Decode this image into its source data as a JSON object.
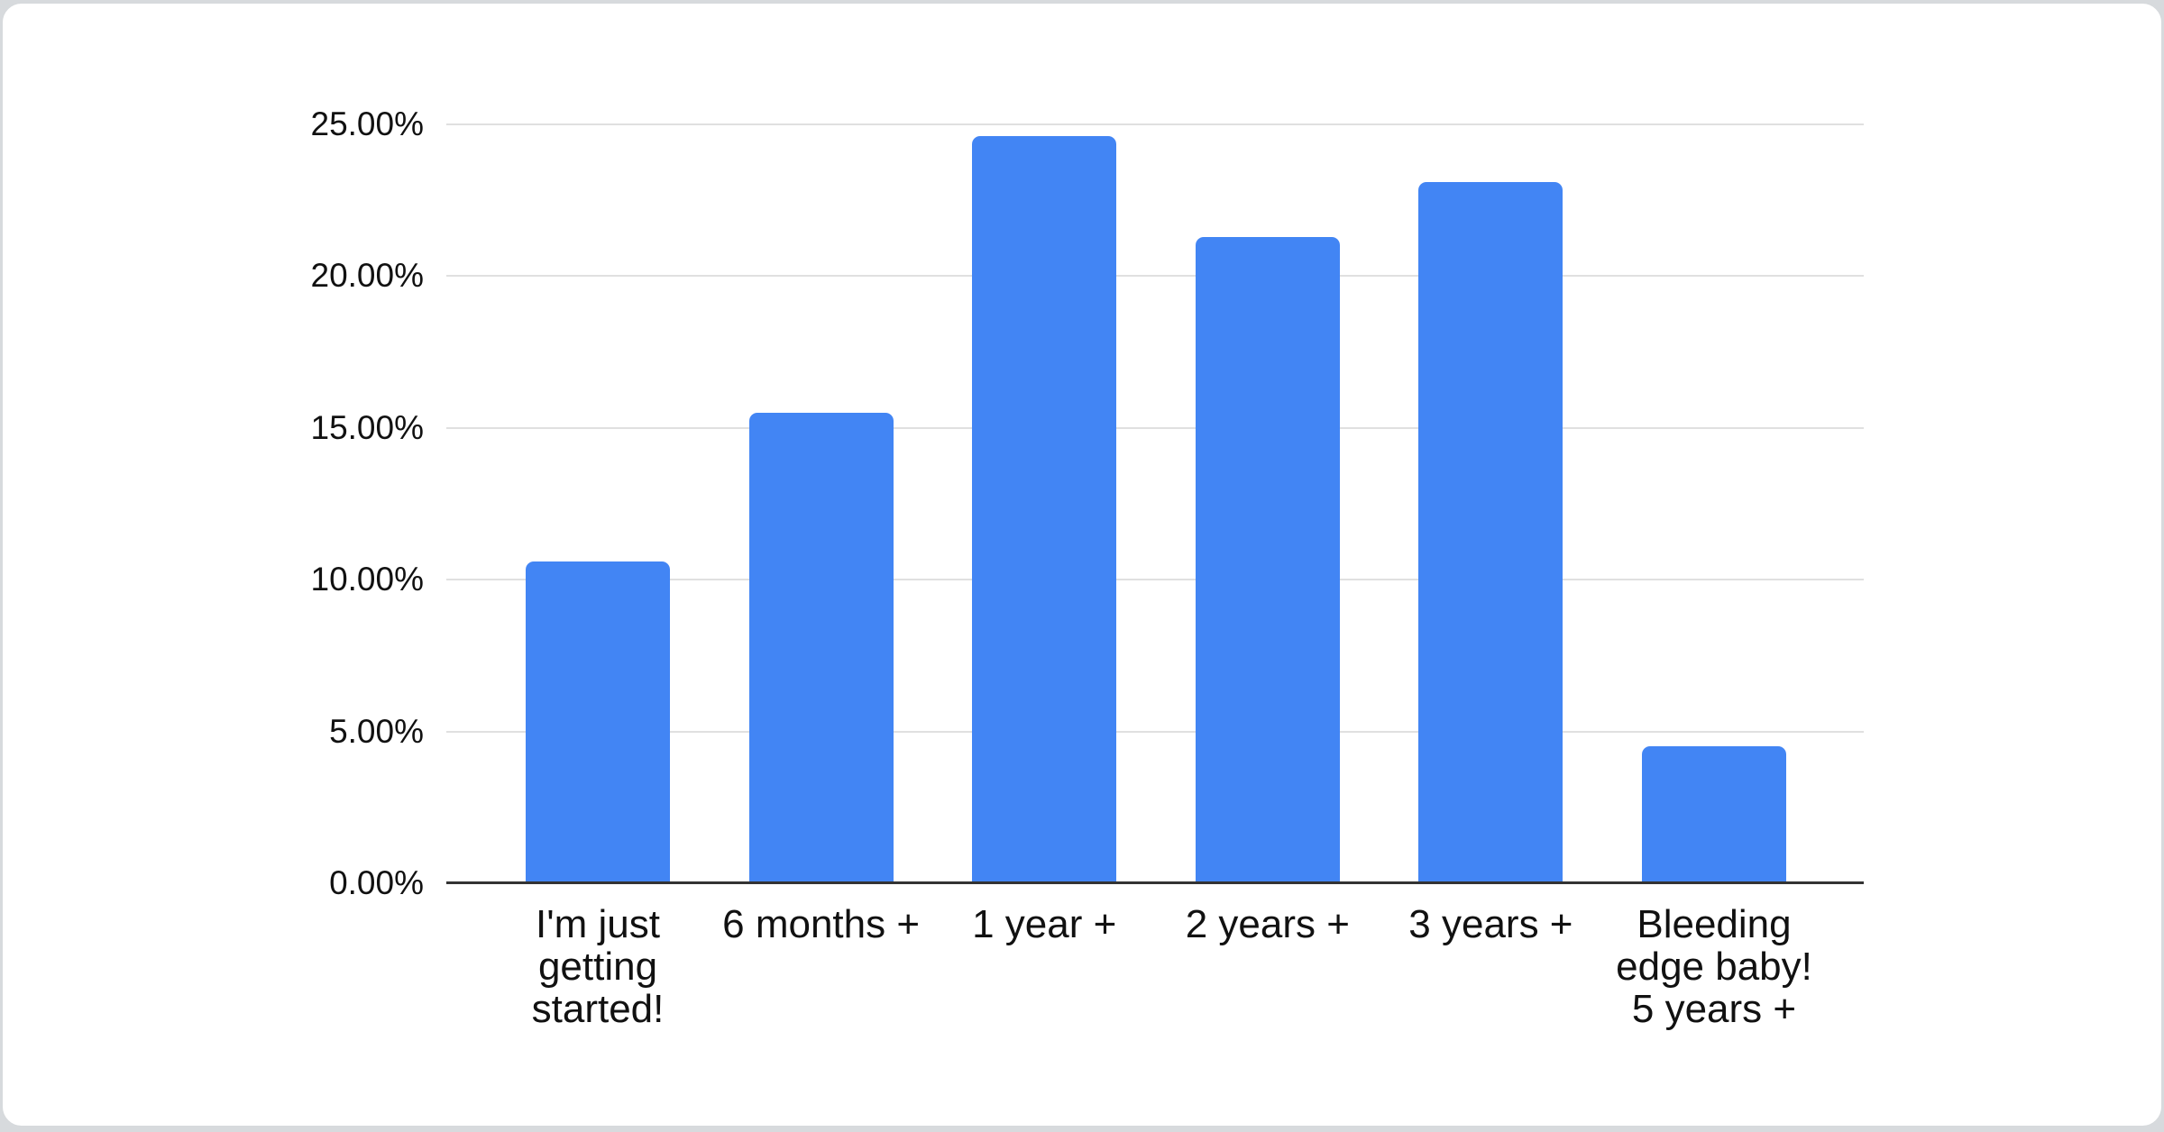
{
  "page": {
    "background_color": "#d7dadd",
    "card_background": "#ffffff",
    "card_border_color": "#d6d9dc"
  },
  "chart_data": {
    "type": "bar",
    "categories": [
      "I'm just getting started!",
      "6 months +",
      "1 year +",
      "2 years +",
      "3 years +",
      "Bleeding edge baby! 5 years +"
    ],
    "category_lines": [
      [
        "I'm just",
        "getting",
        "started!"
      ],
      [
        "6 months +"
      ],
      [
        "1 year +"
      ],
      [
        "2 years +"
      ],
      [
        "3 years +"
      ],
      [
        "Bleeding",
        "edge baby!",
        "5 years +"
      ]
    ],
    "values": [
      10.6,
      15.5,
      24.6,
      21.3,
      23.1,
      4.5
    ],
    "value_unit": "%",
    "y_ticks": [
      "0.00%",
      "5.00%",
      "10.00%",
      "15.00%",
      "20.00%",
      "25.00%"
    ],
    "y_tick_values": [
      0,
      5,
      10,
      15,
      20,
      25
    ],
    "ylim": [
      0,
      25
    ],
    "grid": true,
    "legend": "none",
    "bar_color": "#4285F4",
    "gridline_color": "#e0e0e0",
    "axis_line_color": "#333333",
    "label_color": "#111111"
  }
}
